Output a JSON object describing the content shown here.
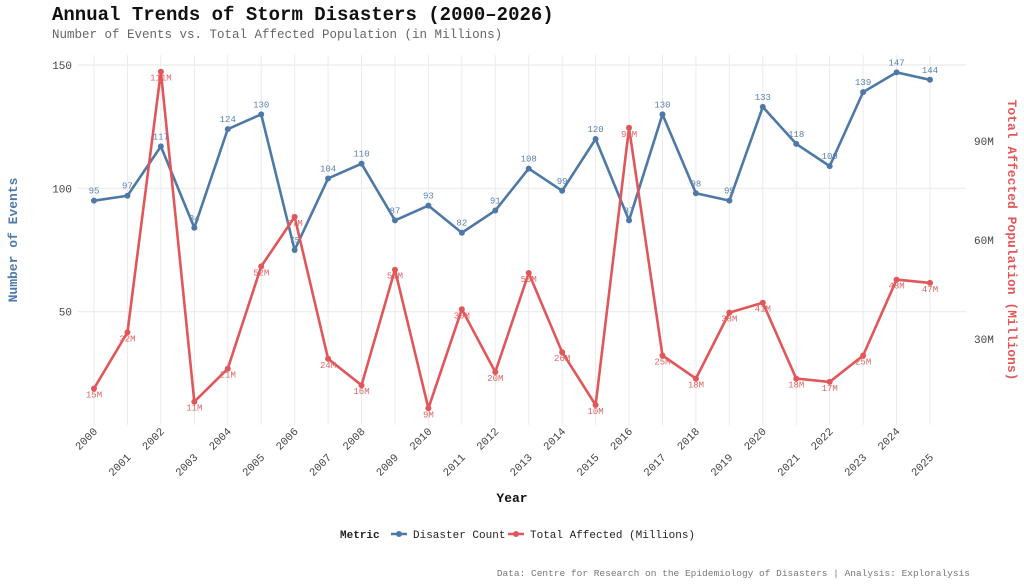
{
  "chart_data": {
    "type": "line",
    "title": "Annual Trends of Storm Disasters (2000–2026)",
    "subtitle": "Number of Events vs. Total Affected Population (in Millions)",
    "xlabel": "Year",
    "ylabel_left": "Number of Events",
    "ylabel_right": "Total Affected Population (Millions)",
    "x": [
      2000,
      2001,
      2002,
      2003,
      2004,
      2005,
      2006,
      2007,
      2008,
      2009,
      2010,
      2011,
      2012,
      2013,
      2014,
      2015,
      2016,
      2017,
      2018,
      2019,
      2020,
      2021,
      2022,
      2023,
      2024,
      2025
    ],
    "left_ticks": [
      50,
      100,
      150
    ],
    "right_ticks": [
      "30M",
      "60M",
      "90M"
    ],
    "right_tick_values": [
      30,
      60,
      90
    ],
    "ylim_left": [
      0,
      155
    ],
    "ylim_right": [
      0,
      112
    ],
    "grid": true,
    "legend_title": "Metric",
    "legend_position": "bottom",
    "series": [
      {
        "name": "Disaster Count",
        "axis": "left",
        "color": "#4e79a7",
        "values": [
          95,
          97,
          117,
          84,
          124,
          130,
          75,
          104,
          110,
          87,
          93,
          82,
          91,
          108,
          99,
          120,
          87,
          130,
          98,
          95,
          133,
          118,
          109,
          139,
          147,
          144
        ]
      },
      {
        "name": "Total Affected (Millions)",
        "axis": "right",
        "color": "#e15759",
        "values": [
          15,
          32,
          111,
          11,
          21,
          52,
          67,
          24,
          16,
          51,
          9,
          39,
          20,
          50,
          26,
          10,
          94,
          25,
          18,
          38,
          41,
          18,
          17,
          25,
          48,
          47
        ]
      }
    ],
    "caption": "Data: Centre for Research on the Epidemiology of Disasters | Analysis: Exploralysis"
  }
}
